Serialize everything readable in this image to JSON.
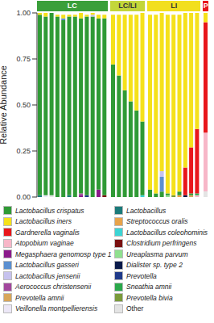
{
  "chart_data": {
    "type": "bar",
    "stacked": true,
    "tick_labels": "y",
    "legend": "bottom",
    "ylabel": "Relative Abundance",
    "ylim": [
      0,
      1
    ],
    "yticks": [
      {
        "value": 0,
        "label": "0.00"
      },
      {
        "value": 0.25,
        "label": "0.25"
      },
      {
        "value": 0.5,
        "label": "0.50"
      },
      {
        "value": 0.75,
        "label": "0.75"
      },
      {
        "value": 1,
        "label": "1.00"
      }
    ],
    "groups": [
      {
        "label": "LC",
        "color": "#3a9f3a",
        "size": 12
      },
      {
        "label": "LC/LI",
        "color": "#c3d63a",
        "size": 6
      },
      {
        "label": "LI",
        "color": "#f2df1e",
        "size": 9
      },
      {
        "label": "P",
        "color": "#e8161b",
        "size": 1
      }
    ],
    "categories": [
      null,
      null,
      null,
      null,
      null,
      null,
      null,
      null,
      null,
      null,
      null,
      null,
      null,
      null,
      null,
      null,
      null,
      null,
      null,
      null,
      null,
      null,
      null,
      null,
      null,
      null,
      null,
      null
    ],
    "series": [
      {
        "name": "Lactobacillus crispatus",
        "color": "#2f9a35",
        "values": [
          0.98,
          0.97,
          0.99,
          0.98,
          0.96,
          0.97,
          0.98,
          0.95,
          0.97,
          0.98,
          0.93,
          0.96,
          0.72,
          0.66,
          0.58,
          0.52,
          0.47,
          0.4,
          0.04,
          0.02,
          0.03,
          0.01,
          0,
          0.02,
          0,
          0.01,
          0,
          0
        ]
      },
      {
        "name": "Lactobacillus iners",
        "color": "#f5e11b",
        "values": [
          0.01,
          0.02,
          0,
          0.01,
          0.02,
          0.01,
          0.01,
          0.03,
          0.01,
          0.01,
          0.02,
          0.02,
          0.27,
          0.33,
          0.41,
          0.47,
          0.52,
          0.59,
          0.95,
          0.97,
          0.86,
          0.97,
          0.98,
          0.96,
          0.84,
          0.73,
          0.63,
          0.05
        ]
      },
      {
        "name": "Gardnerella vaginalis",
        "color": "#e8161b",
        "values": [
          0,
          0,
          0,
          0,
          0,
          0,
          0,
          0,
          0,
          0,
          0,
          0,
          0,
          0,
          0,
          0,
          0,
          0,
          0,
          0,
          0,
          0,
          0,
          0,
          0.15,
          0.25,
          0.35,
          0.6
        ]
      },
      {
        "name": "Atopobium vaginae",
        "color": "#f7b6c8",
        "values": [
          0,
          0,
          0,
          0,
          0,
          0,
          0,
          0,
          0,
          0,
          0,
          0,
          0,
          0,
          0,
          0,
          0,
          0,
          0,
          0,
          0,
          0,
          0,
          0,
          0,
          0,
          0.01,
          0.32
        ]
      },
      {
        "name": "Megasphaera genomosp type 1",
        "color": "#8b1a8b",
        "values": [
          0,
          0,
          0,
          0,
          0,
          0,
          0,
          0.01,
          0,
          0,
          0.04,
          0,
          0,
          0,
          0,
          0,
          0,
          0,
          0,
          0,
          0,
          0,
          0,
          0,
          0,
          0,
          0,
          0
        ]
      },
      {
        "name": "Lactobacillus gasseri",
        "color": "#5b8fd0",
        "values": [
          0,
          0,
          0,
          0,
          0.01,
          0,
          0,
          0,
          0,
          0,
          0,
          0,
          0,
          0,
          0,
          0,
          0,
          0,
          0,
          0,
          0.08,
          0,
          0,
          0,
          0,
          0,
          0,
          0
        ]
      },
      {
        "name": "Lactobacillus jensenii",
        "color": "#c6c2ee",
        "values": [
          0,
          0,
          0,
          0,
          0,
          0,
          0,
          0,
          0,
          0.01,
          0,
          0,
          0,
          0,
          0,
          0,
          0,
          0,
          0,
          0,
          0.03,
          0,
          0,
          0,
          0,
          0,
          0,
          0
        ]
      },
      {
        "name": "Aerococcus christensenii",
        "color": "#a2479d",
        "values": [
          0,
          0,
          0,
          0,
          0,
          0,
          0,
          0.01,
          0,
          0,
          0,
          0,
          0,
          0,
          0,
          0,
          0,
          0,
          0,
          0,
          0,
          0,
          0,
          0,
          0,
          0,
          0,
          0
        ]
      },
      {
        "name": "Prevotella amnii",
        "color": "#d8a65a",
        "values": [
          0,
          0,
          0,
          0,
          0,
          0,
          0,
          0,
          0,
          0,
          0,
          0,
          0,
          0,
          0,
          0,
          0,
          0,
          0,
          0,
          0,
          0,
          0,
          0,
          0,
          0.01,
          0,
          0
        ]
      },
      {
        "name": "Veillonella montpellierensis",
        "color": "#ece7f7",
        "values": [
          0,
          0.01,
          0,
          0,
          0,
          0,
          0,
          0,
          0,
          0,
          0,
          0,
          0,
          0,
          0,
          0,
          0,
          0,
          0,
          0,
          0,
          0,
          0,
          0,
          0,
          0,
          0,
          0
        ]
      },
      {
        "name": "Lactobacillus",
        "color": "#1a7a7a",
        "values": [
          0.01,
          0,
          0,
          0,
          0,
          0.01,
          0,
          0,
          0,
          0,
          0,
          0,
          0,
          0,
          0,
          0,
          0,
          0,
          0,
          0,
          0,
          0,
          0,
          0,
          0,
          0,
          0,
          0
        ]
      },
      {
        "name": "Streptococcus oralis",
        "color": "#e8a34a",
        "values": [
          0,
          0,
          0,
          0,
          0,
          0,
          0,
          0,
          0,
          0,
          0,
          0,
          0,
          0,
          0,
          0,
          0,
          0,
          0,
          0,
          0,
          0,
          0,
          0.01,
          0,
          0,
          0,
          0
        ]
      },
      {
        "name": "Lactobacillus coleohominis",
        "color": "#3cd4d4",
        "values": [
          0,
          0,
          0,
          0,
          0,
          0,
          0,
          0,
          0,
          0,
          0,
          0,
          0,
          0,
          0,
          0,
          0,
          0.01,
          0,
          0,
          0,
          0,
          0,
          0,
          0,
          0,
          0,
          0
        ]
      },
      {
        "name": "Clostridium perfringens",
        "color": "#7a1010",
        "values": [
          0,
          0,
          0,
          0,
          0,
          0,
          0,
          0,
          0,
          0,
          0,
          0.01,
          0,
          0,
          0,
          0,
          0,
          0,
          0,
          0,
          0,
          0,
          0,
          0,
          0,
          0,
          0,
          0
        ]
      },
      {
        "name": "Ureaplasma parvum",
        "color": "#8fe08f",
        "values": [
          0,
          0,
          0,
          0,
          0,
          0,
          0,
          0,
          0,
          0,
          0,
          0,
          0,
          0,
          0,
          0,
          0,
          0,
          0,
          0,
          0,
          0.01,
          0,
          0,
          0,
          0,
          0,
          0
        ]
      },
      {
        "name": "Dialister sp. type 2",
        "color": "#0a1a4a",
        "values": [
          0,
          0,
          0,
          0,
          0,
          0,
          0,
          0,
          0,
          0,
          0,
          0,
          0,
          0,
          0,
          0,
          0,
          0,
          0,
          0,
          0,
          0,
          0,
          0,
          0.01,
          0,
          0,
          0
        ]
      },
      {
        "name": "Prevotella",
        "color": "#1f3a8a",
        "values": [
          0,
          0,
          0,
          0,
          0,
          0,
          0,
          0,
          0.01,
          0,
          0,
          0,
          0,
          0,
          0,
          0,
          0,
          0,
          0,
          0,
          0,
          0,
          0,
          0,
          0,
          0,
          0,
          0
        ]
      },
      {
        "name": "Sneathia amnii",
        "color": "#2aa84a",
        "values": [
          0,
          0,
          0,
          0,
          0,
          0,
          0,
          0,
          0,
          0,
          0,
          0,
          0,
          0,
          0,
          0,
          0,
          0,
          0,
          0,
          0,
          0,
          0,
          0,
          0,
          0,
          0.01,
          0
        ]
      },
      {
        "name": "Prevotella bivia",
        "color": "#7a9a3a",
        "values": [
          0,
          0,
          0,
          0,
          0,
          0,
          0,
          0,
          0,
          0,
          0,
          0,
          0,
          0,
          0,
          0,
          0,
          0,
          0,
          0,
          0,
          0,
          0.01,
          0,
          0,
          0,
          0,
          0
        ]
      },
      {
        "name": "Other",
        "color": "#e4e4e4",
        "values": [
          0,
          0,
          0.01,
          0,
          0,
          0,
          0,
          0,
          0,
          0,
          0,
          0,
          0,
          0,
          0,
          0,
          0,
          0,
          0,
          0,
          0,
          0,
          0,
          0,
          0,
          0,
          0,
          0.03
        ]
      }
    ]
  }
}
